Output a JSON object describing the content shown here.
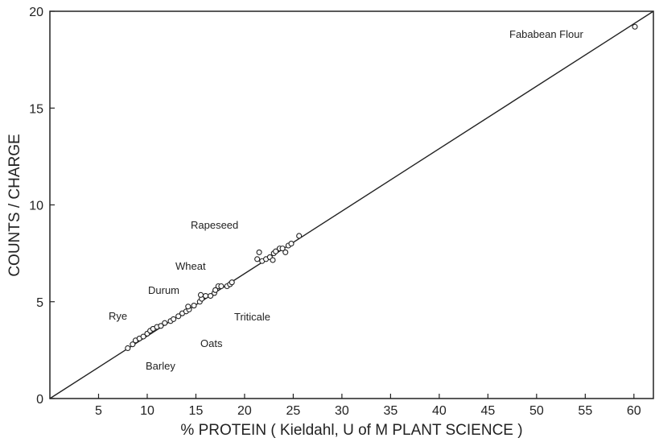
{
  "chart_data": {
    "type": "scatter",
    "x_label": "% PROTEIN ( Kieldahl, U of M PLANT SCIENCE )",
    "y_label": "COUNTS / CHARGE",
    "annotations": [
      "Fababean Flour",
      "Rapeseed",
      "Wheat",
      "Durum",
      "Rye",
      "Triticale",
      "Oats",
      "Barley"
    ],
    "xlim": [
      0,
      62
    ],
    "ylim": [
      0,
      20
    ],
    "xticks": [
      5,
      10,
      15,
      20,
      25,
      30,
      35,
      40,
      45,
      50,
      55,
      60
    ],
    "yticks": [
      0,
      5,
      10,
      15,
      20
    ],
    "x": [
      8.0,
      8.5,
      8.8,
      9.2,
      9.6,
      10.0,
      10.3,
      10.6,
      11.0,
      11.4,
      11.8,
      12.4,
      12.7,
      13.2,
      13.6,
      14.0,
      14.3,
      14.2,
      14.8,
      15.4,
      15.6,
      15.5,
      16.0,
      16.5,
      16.9,
      17.0,
      17.3,
      17.6,
      18.2,
      18.5,
      18.7,
      21.3,
      21.5,
      21.8,
      22.2,
      22.6,
      22.9,
      23.0,
      23.2,
      23.6,
      23.9,
      24.2,
      24.5,
      24.8,
      25.6,
      60.1
    ],
    "values": [
      2.6,
      2.8,
      3.0,
      3.1,
      3.2,
      3.35,
      3.5,
      3.6,
      3.7,
      3.75,
      3.9,
      4.0,
      4.1,
      4.25,
      4.4,
      4.5,
      4.6,
      4.75,
      4.8,
      5.0,
      5.15,
      5.35,
      5.3,
      5.3,
      5.45,
      5.6,
      5.8,
      5.8,
      5.8,
      5.9,
      6.0,
      7.2,
      7.55,
      7.1,
      7.2,
      7.3,
      7.15,
      7.5,
      7.6,
      7.75,
      7.75,
      7.55,
      7.9,
      8.0,
      8.4,
      19.2
    ],
    "fit_line": {
      "x": [
        0,
        62
      ],
      "y": [
        0,
        20
      ]
    },
    "color": "#222"
  }
}
